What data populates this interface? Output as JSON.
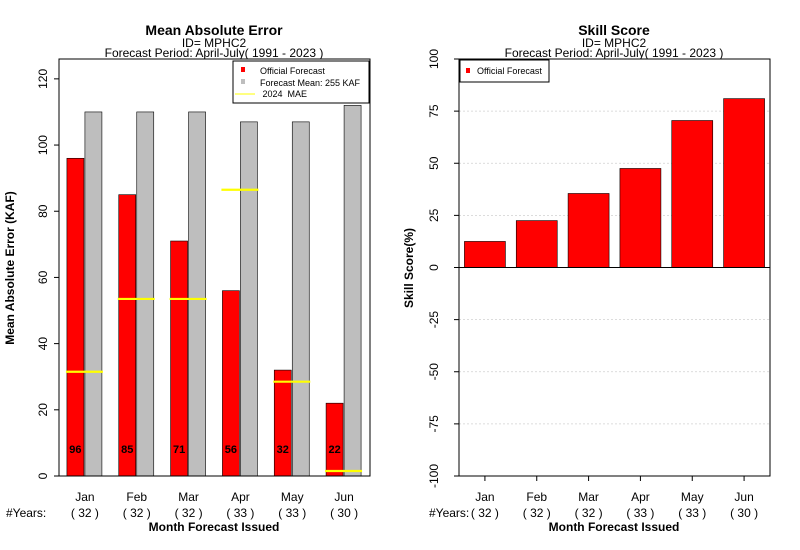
{
  "chart_data": [
    {
      "type": "bar",
      "title": "Mean Absolute Error",
      "subtitle_lines": [
        "ID= MPHC2",
        "Forecast Period: April-July( 1991 - 2023 )"
      ],
      "xlabel": "Month Forecast Issued",
      "ylabel": "Mean Absolute Error (KAF)",
      "ylim": [
        0,
        126
      ],
      "yticks": [
        0,
        20,
        40,
        60,
        80,
        100,
        120
      ],
      "categories": [
        "Jan",
        "Feb",
        "Mar",
        "Apr",
        "May",
        "Jun"
      ],
      "years_prefix": "#Years:",
      "years_labels": [
        "( 32 )",
        "( 32 )",
        "( 32 )",
        "( 33 )",
        "( 33 )",
        "( 30 )"
      ],
      "series": [
        {
          "name": "Official Forecast",
          "color": "#ff0000",
          "values": [
            96,
            85,
            71,
            56,
            32,
            22
          ],
          "data_labels": [
            "96",
            "85",
            "71",
            "56",
            "32",
            "22"
          ]
        },
        {
          "name": "Forecast Mean: 255 KAF",
          "color": "#bebebe",
          "values": [
            110,
            110,
            110,
            107,
            107,
            112
          ]
        }
      ],
      "mae_2024": {
        "name": " 2024  MAE",
        "color": "#ffff00",
        "values": [
          31.5,
          53.5,
          53.5,
          86.5,
          28.5,
          1.5
        ]
      },
      "legend_position": "top-right",
      "grid": false
    },
    {
      "type": "bar",
      "title": "Skill Score",
      "subtitle_lines": [
        "ID= MPHC2",
        "Forecast Period: April-July( 1991 - 2023 )"
      ],
      "xlabel": "Month Forecast Issued",
      "ylabel": "Skill Score(%)",
      "ylim": [
        -100,
        100
      ],
      "yticks": [
        -100,
        -75,
        -50,
        -25,
        0,
        25,
        50,
        75,
        100
      ],
      "ytick_labels": [
        "-100",
        "-75",
        "-50",
        "-25",
        "0",
        "25",
        "50",
        "75",
        "100"
      ],
      "categories": [
        "Jan",
        "Feb",
        "Mar",
        "Apr",
        "May",
        "Jun"
      ],
      "years_prefix": "#Years:",
      "years_labels": [
        "( 32 )",
        "( 32 )",
        "( 32 )",
        "( 33 )",
        "( 33 )",
        "( 30 )"
      ],
      "series": [
        {
          "name": "Official Forecast",
          "color": "#ff0000",
          "values": [
            12.5,
            22.5,
            35.5,
            47.5,
            70.5,
            81
          ]
        }
      ],
      "legend_position": "top-left",
      "grid": true
    }
  ]
}
